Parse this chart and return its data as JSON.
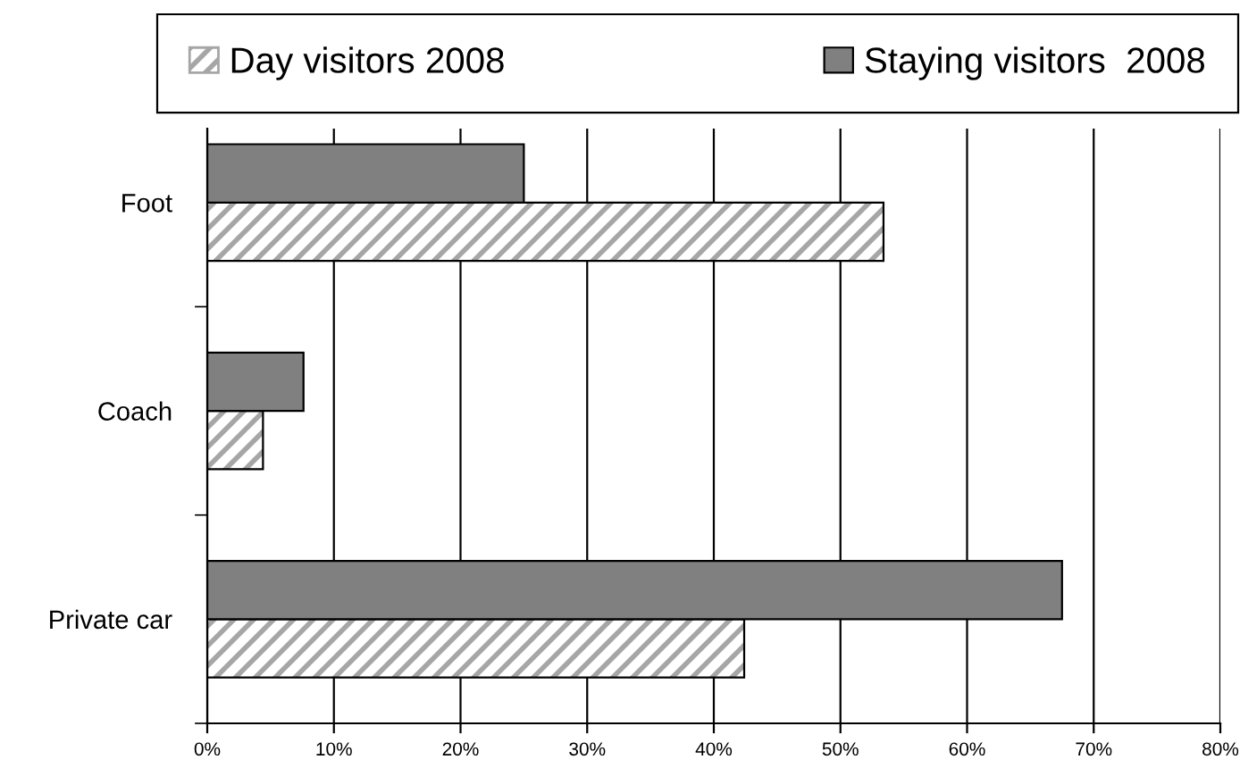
{
  "chart_data": {
    "type": "bar",
    "orientation": "horizontal",
    "categories": [
      "Foot",
      "Coach",
      "Private car"
    ],
    "series": [
      {
        "name": "Day visitors 2008",
        "color": "#a6a6a6",
        "values": [
          53.4,
          4.4,
          42.4
        ]
      },
      {
        "name": "Staying visitors  2008",
        "color": "#808080",
        "values": [
          25.0,
          7.6,
          67.5
        ]
      }
    ],
    "xlim": [
      0,
      80
    ],
    "xticks": [
      {
        "value": 0,
        "label": "0%"
      },
      {
        "value": 10,
        "label": "10%"
      },
      {
        "value": 20,
        "label": "20%"
      },
      {
        "value": 30,
        "label": "30%"
      },
      {
        "value": 40,
        "label": "40%"
      },
      {
        "value": 50,
        "label": "50%"
      },
      {
        "value": 60,
        "label": "60%"
      },
      {
        "value": 70,
        "label": "70%"
      },
      {
        "value": 80,
        "label": "80%"
      }
    ],
    "grid": "x",
    "legend": "top"
  }
}
